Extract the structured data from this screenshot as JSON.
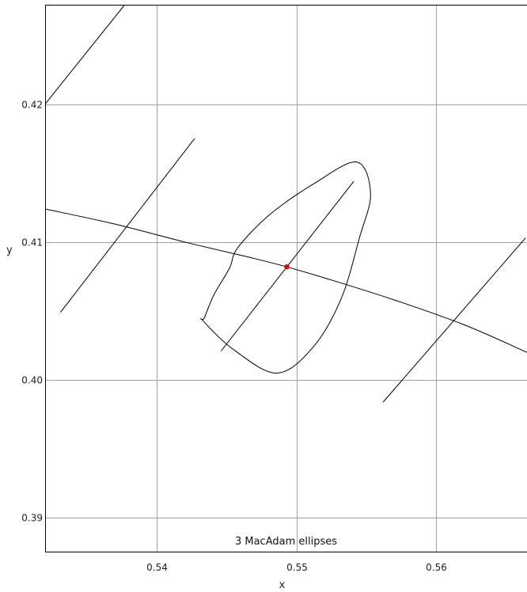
{
  "chart_data": {
    "type": "line",
    "title": "",
    "annotation": "3  MacAdam ellipses",
    "xlabel": "x",
    "ylabel": "y",
    "xlim": [
      0.532,
      0.5665
    ],
    "ylim": [
      0.3875,
      0.4272
    ],
    "xticks": [
      0.54,
      0.55,
      0.56
    ],
    "yticks": [
      0.39,
      0.4,
      0.41,
      0.42
    ],
    "grid": true,
    "colors": {
      "curve": "#000000",
      "point": "#e00000",
      "grid": "#a0a0a0",
      "frame": "#000000"
    },
    "locus_curve": {
      "x": [
        0.532,
        0.537,
        0.542,
        0.547,
        0.5493,
        0.552,
        0.557,
        0.562,
        0.5665
      ],
      "y": [
        0.4124,
        0.4113,
        0.41,
        0.4088,
        0.4082,
        0.4074,
        0.4058,
        0.404,
        0.402
      ]
    },
    "isotemperature_lines": [
      {
        "x": [
          0.532,
          0.5377
        ],
        "y": [
          0.42,
          0.4272
        ]
      },
      {
        "x": [
          0.5331,
          0.5427
        ],
        "y": [
          0.4049,
          0.4175
        ]
      },
      {
        "x": [
          0.5446,
          0.5541
        ],
        "y": [
          0.4021,
          0.4144
        ]
      },
      {
        "x": [
          0.5562,
          0.5664
        ],
        "y": [
          0.3984,
          0.4103
        ]
      }
    ],
    "ellipse": {
      "center": [
        0.5493,
        0.4082
      ],
      "points": {
        "x": [
          0.5433,
          0.5455,
          0.5486,
          0.5512,
          0.5532,
          0.5545,
          0.5553,
          0.5543,
          0.5512,
          0.5481,
          0.5458,
          0.5452,
          0.5441,
          0.5434,
          0.5433
        ],
        "y": [
          0.4043,
          0.4022,
          0.4005,
          0.4024,
          0.4059,
          0.4103,
          0.4135,
          0.4158,
          0.4142,
          0.412,
          0.4096,
          0.4081,
          0.4062,
          0.4045,
          0.4043
        ]
      }
    },
    "point": {
      "x": 0.5493,
      "y": 0.4082
    }
  }
}
